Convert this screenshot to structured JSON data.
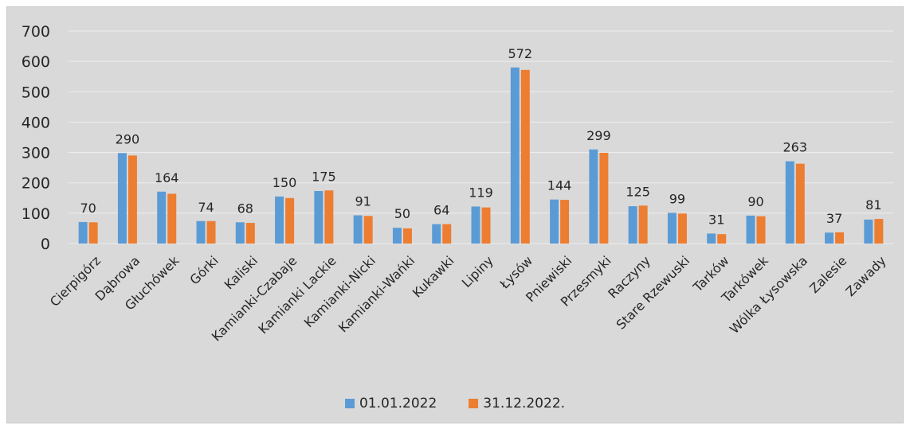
{
  "colors": {
    "background": "#d9d9d9",
    "gridline": "#eeeeee",
    "text": "#262626",
    "series_2022_start": "#5b9bd5",
    "series_2022_end": "#ed7d31"
  },
  "chart_data": {
    "type": "bar",
    "title": "",
    "xlabel": "",
    "ylabel": "",
    "ylim": [
      0,
      700
    ],
    "yticks": [
      0,
      100,
      200,
      300,
      400,
      500,
      600,
      700
    ],
    "grid": true,
    "legend_position": "bottom",
    "categories": [
      "Cierpigórz",
      "Dąbrowa",
      "Głuchówek",
      "Górki",
      "Kaliski",
      "Kamianki-Czabaje",
      "Kamianki Lackie",
      "Kamianki-Nicki",
      "Kamianki-Wańki",
      "Kukawki",
      "Lipiny",
      "Łysów",
      "Pniewiski",
      "Przesmyki",
      "Raczyny",
      "Stare Rzewuski",
      "Tarków",
      "Tarkówek",
      "Wólka Łysowska",
      "Zalesie",
      "Zawady"
    ],
    "series": [
      {
        "name": "01.01.2022",
        "color": "#5b9bd5",
        "values": [
          71,
          298,
          171,
          74,
          70,
          155,
          173,
          93,
          52,
          64,
          122,
          580,
          145,
          310,
          123,
          101,
          33,
          92,
          271,
          36,
          79
        ]
      },
      {
        "name": "31.12.2022.",
        "color": "#ed7d31",
        "values": [
          70,
          290,
          164,
          74,
          68,
          150,
          175,
          91,
          50,
          64,
          119,
          572,
          144,
          299,
          125,
          99,
          31,
          90,
          263,
          37,
          81
        ]
      }
    ],
    "data_labels_series": 1
  }
}
